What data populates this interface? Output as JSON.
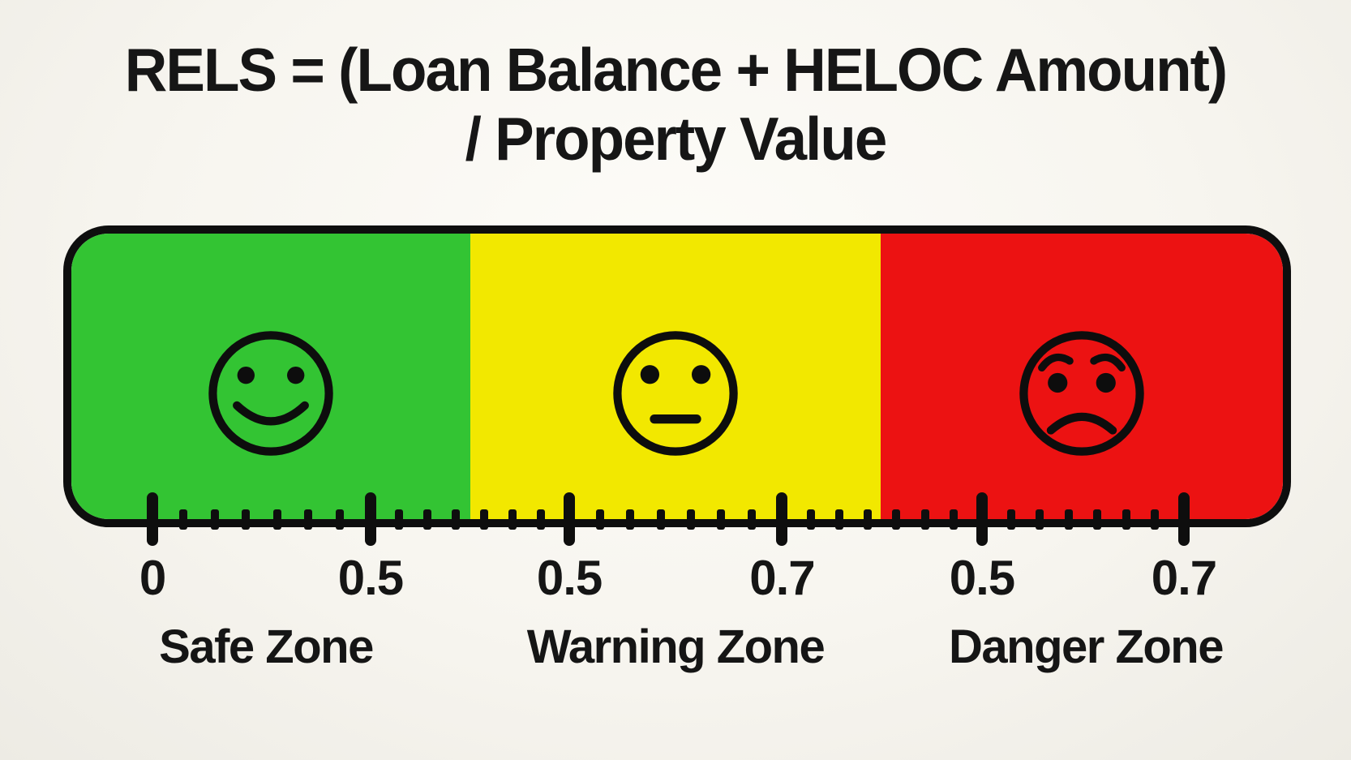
{
  "title": {
    "line1": "RELS = (Loan Balance + HELOC Amount)",
    "line2": "/ Property Value"
  },
  "gauge": {
    "zones": [
      {
        "id": "safe",
        "label": "Safe Zone",
        "color": "#33c433",
        "face": "happy",
        "range_labels": [
          "0",
          "0.5"
        ]
      },
      {
        "id": "warning",
        "label": "Warning Zone",
        "color": "#f2e800",
        "face": "neutral",
        "range_labels": [
          "0.5",
          "0.7"
        ]
      },
      {
        "id": "danger",
        "label": "Danger Zone",
        "color": "#ec1212",
        "face": "worried",
        "range_labels": [
          "0.5",
          "0.7"
        ]
      }
    ],
    "ruler": {
      "labels": [
        "0",
        "0.5",
        "0.5",
        "0.7",
        "0.5",
        "0.7"
      ],
      "major_tick_pct": [
        7.27,
        25.03,
        41.22,
        58.55,
        74.83,
        91.28
      ],
      "minor_ticks_between_majors": 6,
      "tick_color": "#0e0e0e"
    },
    "border_color": "#0e0e0e"
  },
  "icons": {
    "happy": "happy-face-icon",
    "neutral": "neutral-face-icon",
    "worried": "worried-face-icon"
  },
  "background_color": "#f6f4ee",
  "text_color": "#151515"
}
